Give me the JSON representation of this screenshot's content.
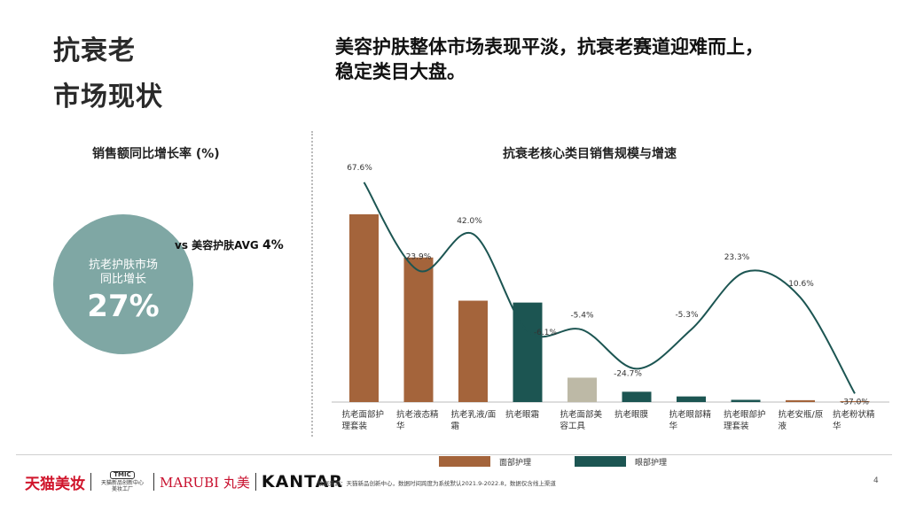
{
  "page": {
    "title_line1": "抗衰老",
    "title_line2": "市场现状",
    "headline_line1": "美容护肤整体市场表现平淡，抗衰老赛道迎难而上，",
    "headline_line2": "稳定类目大盘。",
    "page_number": "4",
    "source_note": "数据来源：天猫新品创新中心，数据时间跨度为系统默认2021.9-2022.8，数据仅含线上渠道"
  },
  "left_panel": {
    "title": "销售额同比增长率 (%)",
    "circle_line1": "抗老护肤市场",
    "circle_line2": "同比增长",
    "circle_value": "27%",
    "vs_prefix": "vs 美容护肤AVG",
    "vs_value": "4%",
    "circle_color": "#7fa7a4"
  },
  "logos": {
    "tmall": "天猫美妆",
    "tmic_box": "TMIC",
    "tmic_text1": "天猫新品创新中心",
    "tmic_text2": "美妆工厂",
    "marubi": "MARUBI 丸美",
    "kantar": "KANTAR"
  },
  "chart_data": {
    "type": "bar",
    "title": "抗衰老核心类目销售规模与增速",
    "categories": [
      [
        "抗老面部护",
        "理套装"
      ],
      [
        "抗老液态精",
        "华"
      ],
      [
        "抗老乳液/面",
        "霜"
      ],
      [
        "抗老眼霜"
      ],
      [
        "抗老面部美",
        "容工具"
      ],
      [
        "抗老眼膜"
      ],
      [
        "抗老眼部精",
        "华"
      ],
      [
        "抗老眼部护",
        "理套装"
      ],
      [
        "抗老安瓶/原",
        "液"
      ],
      [
        "抗老粉状精",
        "华"
      ]
    ],
    "bar_values": [
      100,
      77,
      54,
      53,
      13,
      5.5,
      3,
      1.2,
      1,
      0.5
    ],
    "bar_colors": [
      "#a4643b",
      "#a4643b",
      "#a4643b",
      "#1c5552",
      "#bdb9a6",
      "#1c5552",
      "#1c5552",
      "#1c5552",
      "#a4643b",
      "#a4643b"
    ],
    "growth_rates": [
      67.6,
      23.9,
      42.0,
      -6.1,
      -5.4,
      -24.7,
      -5.3,
      23.3,
      10.6,
      -37.0
    ],
    "growth_labels": [
      "67.6%",
      "23.9%",
      "42.0%",
      "-6.1%",
      "-5.4%",
      "-24.7%",
      "-5.3%",
      "23.3%",
      "10.6%",
      "-37.0%"
    ],
    "line_color": "#1c5552",
    "legend": [
      {
        "name": "面部护理",
        "color": "#a4643b"
      },
      {
        "name": "眼部护理",
        "color": "#1c5552"
      }
    ]
  }
}
